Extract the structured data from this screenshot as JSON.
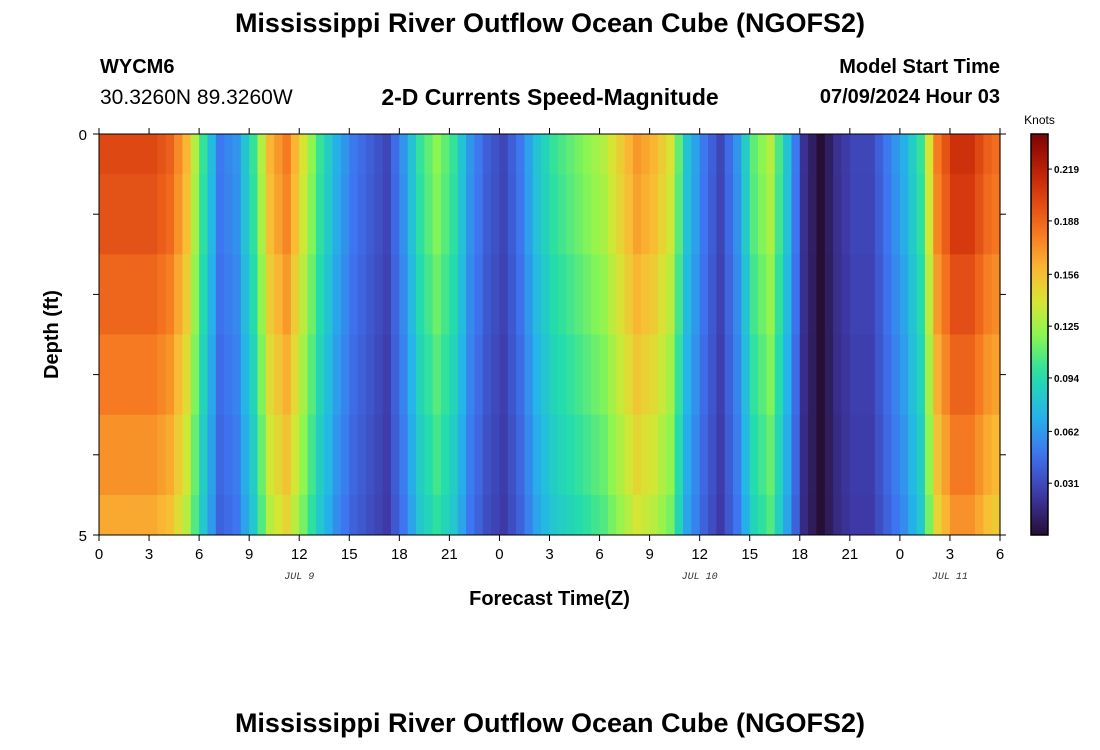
{
  "page": {
    "title": "Mississippi River Outflow Ocean Cube (NGOFS2)",
    "title_repeat": "Mississippi River Outflow Ocean Cube (NGOFS2)",
    "station": "WYCM6",
    "coords": "30.3260N  89.3260W",
    "subtitle": "2-D Currents Speed-Magnitude",
    "model_start_label": "Model Start Time",
    "model_start_value": "07/09/2024 Hour 03"
  },
  "chart_data": {
    "type": "heatmap",
    "xlabel": "Forecast Time(Z)",
    "ylabel": "Depth (ft)",
    "x_ticks": [
      "0",
      "3",
      "6",
      "9",
      "12",
      "15",
      "18",
      "21",
      "0",
      "3",
      "6",
      "9",
      "12",
      "15",
      "18",
      "21",
      "0",
      "3",
      "6"
    ],
    "date_labels": [
      {
        "text": "JUL 9",
        "hour": 12
      },
      {
        "text": "JUL 10",
        "hour": 36
      },
      {
        "text": "JUL 11",
        "hour": 51
      }
    ],
    "y_ticks": [
      "0",
      "5"
    ],
    "xlim": [
      0,
      54
    ],
    "ylim": [
      0,
      5
    ],
    "colorbar": {
      "unit": "Knots",
      "min": 0,
      "max": 0.24,
      "ticks": [
        "0.219",
        "0.188",
        "0.156",
        "0.125",
        "0.094",
        "0.062",
        "0.031"
      ],
      "tick_values": [
        0.219,
        0.188,
        0.156,
        0.125,
        0.094,
        0.062,
        0.031
      ]
    },
    "depth_layers": [
      0,
      0.5,
      1.5,
      2.5,
      3.5,
      4.5,
      5
    ],
    "time_step_hours": 0.5,
    "surface_speeds_hourly": [
      0.2,
      0.2,
      0.2,
      0.2,
      0.19,
      0.16,
      0.1,
      0.05,
      0.06,
      0.1,
      0.16,
      0.18,
      0.14,
      0.1,
      0.07,
      0.05,
      0.04,
      0.03,
      0.06,
      0.1,
      0.12,
      0.1,
      0.06,
      0.04,
      0.03,
      0.05,
      0.08,
      0.1,
      0.11,
      0.12,
      0.13,
      0.15,
      0.17,
      0.16,
      0.14,
      0.08,
      0.05,
      0.03,
      0.06,
      0.11,
      0.13,
      0.08,
      0.02,
      0.0,
      0.02,
      0.03,
      0.03,
      0.05,
      0.07,
      0.1,
      0.18,
      0.21,
      0.21,
      0.19,
      0.18
    ],
    "depth_factors": [
      1.0,
      0.98,
      0.94,
      0.9,
      0.86,
      0.82
    ]
  }
}
